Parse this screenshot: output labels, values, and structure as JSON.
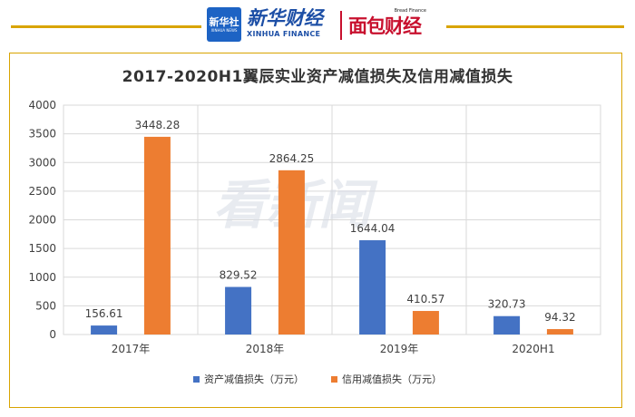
{
  "header": {
    "xinhua_logo": {
      "cn": "新华社",
      "en": "XINHUA NEWS"
    },
    "xinhua_finance": {
      "cn": "新华财经",
      "en": "XINHUA FINANCE"
    },
    "mianbao": {
      "cn": "面包财经",
      "en": "Bread Finance"
    }
  },
  "watermark": "看新闻",
  "colors": {
    "accent": "#d9a400",
    "series1": "#4472c4",
    "series2": "#ed7d31"
  },
  "chart_data": {
    "type": "bar",
    "title": "2017-2020H1翼辰实业资产减值损失及信用减值损失",
    "categories": [
      "2017年",
      "2018年",
      "2019年",
      "2020H1"
    ],
    "series": [
      {
        "name": "资产减值损失（万元）",
        "values": [
          156.61,
          829.52,
          1644.04,
          320.73
        ],
        "labels": [
          "156.61",
          "829.52",
          "1644.04",
          "320.73"
        ]
      },
      {
        "name": "信用减值损失（万元）",
        "values": [
          3448.28,
          2864.25,
          410.57,
          94.32
        ],
        "labels": [
          "3448.28",
          "2864.25",
          "410.57",
          "94.32"
        ]
      }
    ],
    "yticks": [
      "0",
      "500",
      "1000",
      "1500",
      "2000",
      "2500",
      "3000",
      "3500",
      "4000"
    ],
    "ylim": [
      0,
      4000
    ],
    "xlabel": "",
    "ylabel": "",
    "grid": true,
    "legend": "bottom"
  }
}
